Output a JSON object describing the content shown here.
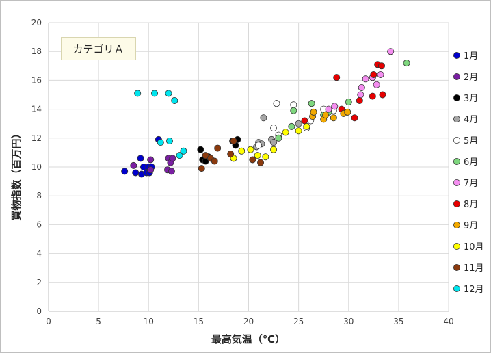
{
  "chart_data": {
    "type": "scatter",
    "title": "",
    "category_label": "カテゴリＡ",
    "xlabel": "最高気温（℃）",
    "ylabel": "買物指数（百万円）",
    "xlim": [
      0,
      40
    ],
    "ylim": [
      0,
      20
    ],
    "xticks": [
      0,
      5,
      10,
      15,
      20,
      25,
      30,
      35,
      40
    ],
    "yticks": [
      0,
      2,
      4,
      6,
      8,
      10,
      12,
      14,
      16,
      18,
      20
    ],
    "grid": true,
    "legend_position": "right",
    "series": [
      {
        "name": "1月",
        "color": "#0000cc",
        "points": [
          [
            7.6,
            9.7
          ],
          [
            8.7,
            9.6
          ],
          [
            9.2,
            10.6
          ],
          [
            9.3,
            9.5
          ],
          [
            9.5,
            10.0
          ],
          [
            9.8,
            9.6
          ],
          [
            10.0,
            10.0
          ],
          [
            10.1,
            9.6
          ],
          [
            10.3,
            10.0
          ],
          [
            11.0,
            11.9
          ]
        ]
      },
      {
        "name": "2月",
        "color": "#7a1fa2",
        "points": [
          [
            8.5,
            10.1
          ],
          [
            10.2,
            10.5
          ],
          [
            10.2,
            9.8
          ],
          [
            11.9,
            9.8
          ],
          [
            12.0,
            10.6
          ],
          [
            12.2,
            10.3
          ],
          [
            12.3,
            9.7
          ],
          [
            12.4,
            10.6
          ]
        ]
      },
      {
        "name": "3月",
        "color": "#000000",
        "points": [
          [
            15.2,
            11.2
          ],
          [
            15.4,
            10.5
          ],
          [
            15.7,
            10.4
          ],
          [
            16.0,
            10.7
          ],
          [
            18.4,
            11.8
          ],
          [
            18.7,
            11.5
          ],
          [
            18.9,
            11.9
          ]
        ]
      },
      {
        "name": "4月",
        "color": "#a6a6a6",
        "points": [
          [
            20.8,
            11.4
          ],
          [
            21.0,
            11.7
          ],
          [
            21.3,
            11.6
          ],
          [
            21.5,
            13.4
          ],
          [
            22.3,
            11.9
          ],
          [
            22.5,
            11.7
          ],
          [
            25.0,
            13.0
          ]
        ]
      },
      {
        "name": "5月",
        "color": "#ffffff",
        "points": [
          [
            21.0,
            11.5
          ],
          [
            22.5,
            12.7
          ],
          [
            22.8,
            14.4
          ],
          [
            23.0,
            12.2
          ],
          [
            24.5,
            14.3
          ],
          [
            25.8,
            12.7
          ],
          [
            26.2,
            13.2
          ],
          [
            27.5,
            14.0
          ],
          [
            28.5,
            13.9
          ]
        ]
      },
      {
        "name": "6月",
        "color": "#7ed67e",
        "points": [
          [
            23.0,
            12.0
          ],
          [
            24.3,
            12.8
          ],
          [
            24.5,
            13.9
          ],
          [
            26.3,
            14.4
          ],
          [
            27.5,
            13.6
          ],
          [
            28.0,
            13.8
          ],
          [
            30.0,
            14.5
          ],
          [
            35.8,
            17.2
          ]
        ]
      },
      {
        "name": "7月",
        "color": "#f48ef0",
        "points": [
          [
            28.0,
            14.0
          ],
          [
            28.6,
            14.2
          ],
          [
            31.2,
            15.0
          ],
          [
            31.3,
            15.5
          ],
          [
            31.7,
            16.1
          ],
          [
            32.4,
            16.2
          ],
          [
            32.8,
            15.7
          ],
          [
            33.2,
            16.4
          ],
          [
            34.2,
            18.0
          ]
        ]
      },
      {
        "name": "8月",
        "color": "#e60000",
        "points": [
          [
            25.6,
            13.2
          ],
          [
            28.8,
            16.2
          ],
          [
            29.3,
            14.0
          ],
          [
            30.6,
            13.4
          ],
          [
            31.1,
            14.6
          ],
          [
            32.4,
            14.9
          ],
          [
            32.5,
            16.4
          ],
          [
            32.9,
            17.1
          ],
          [
            33.3,
            17.0
          ],
          [
            33.4,
            15.0
          ]
        ]
      },
      {
        "name": "9月",
        "color": "#f2a900",
        "points": [
          [
            26.4,
            13.5
          ],
          [
            26.5,
            13.8
          ],
          [
            27.5,
            13.3
          ],
          [
            27.7,
            13.6
          ],
          [
            28.5,
            13.4
          ],
          [
            29.5,
            13.7
          ],
          [
            29.9,
            13.8
          ]
        ]
      },
      {
        "name": "10月",
        "color": "#ffff00",
        "points": [
          [
            18.5,
            10.6
          ],
          [
            19.3,
            11.1
          ],
          [
            20.2,
            11.2
          ],
          [
            20.9,
            10.8
          ],
          [
            21.7,
            10.7
          ],
          [
            22.5,
            11.2
          ],
          [
            23.7,
            12.4
          ],
          [
            25.0,
            12.5
          ],
          [
            25.8,
            12.8
          ]
        ]
      },
      {
        "name": "11月",
        "color": "#8b3a0e",
        "points": [
          [
            15.3,
            9.9
          ],
          [
            15.7,
            10.8
          ],
          [
            16.2,
            10.6
          ],
          [
            16.6,
            10.4
          ],
          [
            16.9,
            11.3
          ],
          [
            18.2,
            10.9
          ],
          [
            18.5,
            11.8
          ],
          [
            20.4,
            10.5
          ],
          [
            21.2,
            10.3
          ]
        ]
      },
      {
        "name": "12月",
        "color": "#00e5ee",
        "points": [
          [
            8.9,
            15.1
          ],
          [
            10.6,
            15.1
          ],
          [
            11.2,
            11.7
          ],
          [
            12.0,
            15.1
          ],
          [
            12.1,
            11.8
          ],
          [
            12.6,
            14.6
          ],
          [
            13.1,
            10.8
          ],
          [
            13.5,
            11.1
          ]
        ]
      }
    ]
  }
}
